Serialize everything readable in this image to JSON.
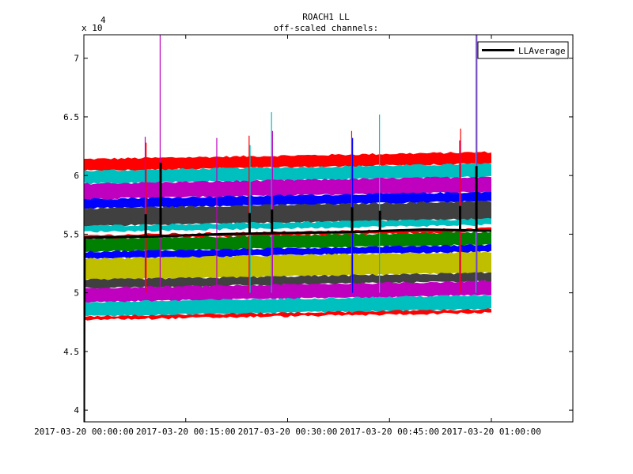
{
  "chart_data": {
    "type": "line",
    "title": "ROACH1 LL",
    "subtitle": "off-scaled channels:",
    "y_multiplier": {
      "base": "x 10",
      "exponent": "4"
    },
    "xlabel": "",
    "ylabel": "",
    "grid": false,
    "legend_position": "top-right",
    "xlim_minutes": [
      0,
      72
    ],
    "ylim": [
      3.9,
      7.2
    ],
    "x_ticks": [
      {
        "minutes": 0,
        "label": "2017-03-20  00:00:00"
      },
      {
        "minutes": 15,
        "label": "2017-03-20  00:15:00"
      },
      {
        "minutes": 30,
        "label": "2017-03-20  00:30:00"
      },
      {
        "minutes": 45,
        "label": "2017-03-20  00:45:00"
      },
      {
        "minutes": 60,
        "label": "2017-03-20  01:00:00"
      }
    ],
    "y_ticks": [
      {
        "value": 4.0,
        "label": "4"
      },
      {
        "value": 4.5,
        "label": "4.5"
      },
      {
        "value": 5.0,
        "label": "5"
      },
      {
        "value": 5.5,
        "label": "5.5"
      },
      {
        "value": 6.0,
        "label": "6"
      },
      {
        "value": 6.5,
        "label": "6.5"
      },
      {
        "value": 7.0,
        "label": "7"
      }
    ],
    "data_x_range_minutes": [
      0,
      60
    ],
    "bands": [
      {
        "name": "ch-red-top",
        "color": "#ff0000",
        "y_start": [
          6.04,
          6.14
        ],
        "y_end": [
          6.1,
          6.2
        ]
      },
      {
        "name": "ch-cyan-1",
        "color": "#00bfbf",
        "y_start": [
          5.93,
          6.04
        ],
        "y_end": [
          5.99,
          6.1
        ]
      },
      {
        "name": "ch-magenta-1",
        "color": "#bf00bf",
        "y_start": [
          5.8,
          5.93
        ],
        "y_end": [
          5.86,
          5.99
        ]
      },
      {
        "name": "ch-blue-1",
        "color": "#0000ff",
        "y_start": [
          5.72,
          5.8
        ],
        "y_end": [
          5.78,
          5.86
        ]
      },
      {
        "name": "ch-dark-1",
        "color": "#404040",
        "y_start": [
          5.57,
          5.72
        ],
        "y_end": [
          5.63,
          5.78
        ]
      },
      {
        "name": "ch-cyan-2",
        "color": "#00bfbf",
        "y_start": [
          5.52,
          5.57
        ],
        "y_end": [
          5.58,
          5.63
        ]
      },
      {
        "name": "ch-red-2",
        "color": "#ff0000",
        "y_start": [
          5.46,
          5.49
        ],
        "y_end": [
          5.52,
          5.55
        ]
      },
      {
        "name": "ch-green",
        "color": "#008000",
        "y_start": [
          5.35,
          5.46
        ],
        "y_end": [
          5.41,
          5.52
        ]
      },
      {
        "name": "ch-blue-2",
        "color": "#0000ff",
        "y_start": [
          5.29,
          5.35
        ],
        "y_end": [
          5.35,
          5.41
        ]
      },
      {
        "name": "ch-olive",
        "color": "#bfbf00",
        "y_start": [
          5.11,
          5.29
        ],
        "y_end": [
          5.17,
          5.35
        ]
      },
      {
        "name": "ch-dark-2",
        "color": "#404040",
        "y_start": [
          5.04,
          5.11
        ],
        "y_end": [
          5.1,
          5.17
        ]
      },
      {
        "name": "ch-magenta-2",
        "color": "#bf00bf",
        "y_start": [
          4.92,
          5.04
        ],
        "y_end": [
          4.98,
          5.1
        ]
      },
      {
        "name": "ch-cyan-3",
        "color": "#00bfbf",
        "y_start": [
          4.8,
          4.92
        ],
        "y_end": [
          4.86,
          4.98
        ]
      },
      {
        "name": "ch-red-bottom",
        "color": "#ff0000",
        "y_start": [
          4.77,
          4.8
        ],
        "y_end": [
          4.83,
          4.86
        ]
      }
    ],
    "series": [
      {
        "name": "LLAverage",
        "color": "#000000",
        "x_minutes": [
          0,
          0.1,
          10,
          20,
          30,
          40,
          50,
          60
        ],
        "values": [
          3.9,
          5.47,
          5.48,
          5.5,
          5.51,
          5.52,
          5.54,
          5.53
        ]
      }
    ],
    "average_spikes": [
      {
        "minutes": 9.1,
        "top": 5.67
      },
      {
        "minutes": 11.3,
        "top": 6.11
      },
      {
        "minutes": 24.4,
        "top": 5.68
      },
      {
        "minutes": 27.7,
        "top": 5.71
      },
      {
        "minutes": 39.5,
        "top": 5.73
      },
      {
        "minutes": 43.6,
        "top": 5.7
      },
      {
        "minutes": 55.4,
        "top": 5.74
      },
      {
        "minutes": 57.8,
        "top": 6.08
      }
    ],
    "colored_spikes": [
      {
        "minutes": 9.1,
        "top": 6.33,
        "color": "#bf00bf"
      },
      {
        "minutes": 9.1,
        "top": 6.28,
        "color": "#ff0000"
      },
      {
        "minutes": 11.3,
        "top": 7.2,
        "color": "#bf00bf"
      },
      {
        "minutes": 19.5,
        "top": 6.32,
        "color": "#bf00bf"
      },
      {
        "minutes": 24.4,
        "top": 6.34,
        "color": "#ff0000"
      },
      {
        "minutes": 24.4,
        "top": 6.26,
        "color": "#00bfbf"
      },
      {
        "minutes": 27.7,
        "top": 6.54,
        "color": "#00bfbf"
      },
      {
        "minutes": 27.7,
        "top": 6.38,
        "color": "#bf00bf"
      },
      {
        "minutes": 39.5,
        "top": 6.38,
        "color": "#ff0000"
      },
      {
        "minutes": 39.5,
        "top": 6.32,
        "color": "#0000ff"
      },
      {
        "minutes": 43.6,
        "top": 6.52,
        "color": "#00bfbf"
      },
      {
        "minutes": 55.4,
        "top": 6.4,
        "color": "#ff0000"
      },
      {
        "minutes": 55.4,
        "top": 6.3,
        "color": "#bf00bf"
      },
      {
        "minutes": 57.8,
        "top": 7.2,
        "color": "#bf00bf"
      },
      {
        "minutes": 57.8,
        "top": 7.2,
        "color": "#00bfbf"
      }
    ],
    "legend": [
      {
        "label": "LLAverage",
        "color": "#000000"
      }
    ]
  }
}
